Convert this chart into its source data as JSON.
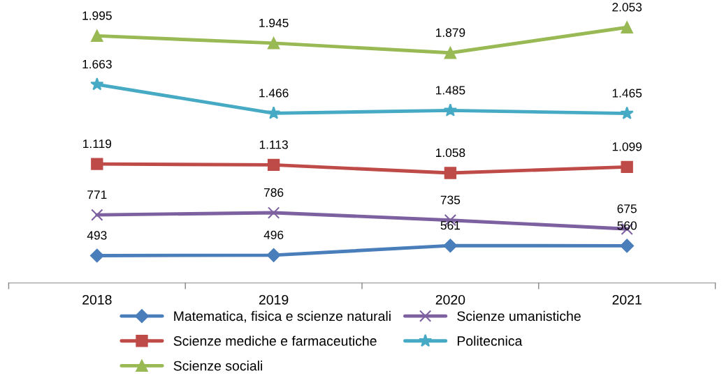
{
  "chart_data": {
    "type": "line",
    "categories": [
      "2018",
      "2019",
      "2020",
      "2021"
    ],
    "tick_labels": "x",
    "grid": false,
    "legend": "bottom",
    "series": [
      {
        "name": "Matematica, fisica e scienze naturali",
        "color": "#4a7ebb",
        "marker": "diamond",
        "values": [
          493,
          496,
          561,
          560
        ],
        "value_labels": [
          "493",
          "496",
          "561",
          "560"
        ]
      },
      {
        "name": "Scienze mediche e farmaceutiche",
        "color": "#be4b48",
        "marker": "square",
        "values": [
          1119,
          1113,
          1058,
          1099
        ],
        "value_labels": [
          "1.119",
          "1.113",
          "1.058",
          "1.099"
        ]
      },
      {
        "name": "Scienze sociali",
        "color": "#98b954",
        "marker": "triangle",
        "values": [
          1995,
          1945,
          1879,
          2053
        ],
        "value_labels": [
          "1.995",
          "1.945",
          "1.879",
          "2.053"
        ]
      },
      {
        "name": "Scienze umanistiche",
        "color": "#7d60a0",
        "marker": "cross",
        "values": [
          771,
          786,
          735,
          675
        ],
        "value_labels": [
          "771",
          "786",
          "735",
          "675"
        ]
      },
      {
        "name": "Politecnica",
        "color": "#46aac5",
        "marker": "star",
        "values": [
          1663,
          1466,
          1485,
          1465
        ],
        "value_labels": [
          "1.663",
          "1.466",
          "1.485",
          "1.465"
        ]
      }
    ]
  }
}
